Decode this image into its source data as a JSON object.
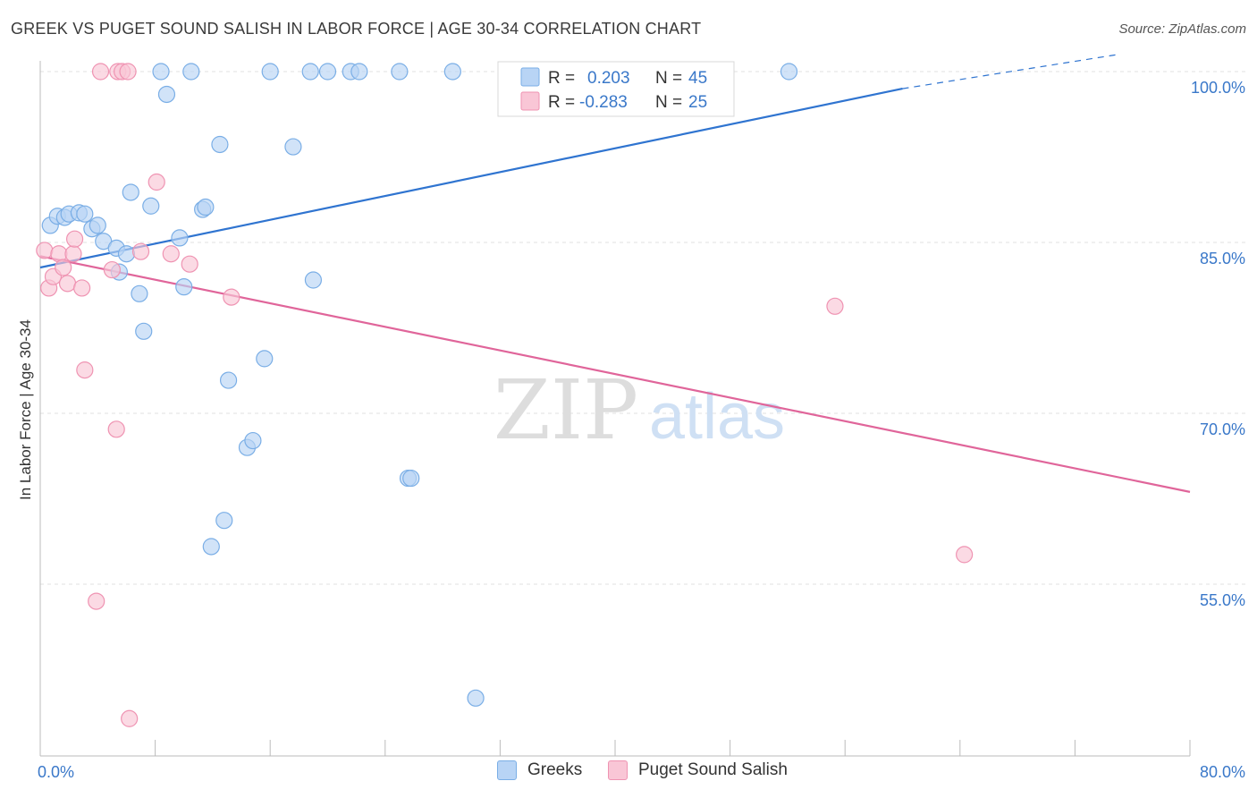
{
  "title": "GREEK VS PUGET SOUND SALISH IN LABOR FORCE | AGE 30-34 CORRELATION CHART",
  "source": "Source: ZipAtlas.com",
  "watermark": {
    "zip": "ZIP",
    "atlas": "atlas"
  },
  "legend_stats": [
    {
      "r_label": "R =",
      "r_value": "0.203",
      "n_label": "N =",
      "n_value": "45"
    },
    {
      "r_label": "R =",
      "r_value": "-0.283",
      "n_label": "N =",
      "n_value": "25"
    }
  ],
  "colors": {
    "greeks_fill": "#b8d4f5",
    "greeks_stroke": "#7aaee6",
    "greeks_line": "#2f74d0",
    "salish_fill": "#f9c6d6",
    "salish_stroke": "#ef93b2",
    "salish_line": "#e0659a",
    "value_text": "#3a78c9",
    "grid": "#e2e2e2"
  },
  "chart_data": {
    "type": "scatter",
    "title": "GREEK VS PUGET SOUND SALISH IN LABOR FORCE | AGE 30-34 CORRELATION CHART",
    "xlabel": "",
    "ylabel": "In Labor Force | Age 30-34",
    "xlim": [
      0,
      80
    ],
    "ylim": [
      42,
      100
    ],
    "x_tick_labels": [
      "0.0%",
      "80.0%"
    ],
    "y_ticks": [
      100,
      85,
      70,
      55
    ],
    "y_tick_labels": [
      "100.0%",
      "85.0%",
      "70.0%",
      "55.0%"
    ],
    "grid": "horizontal dashed",
    "legend_placement": "top-center and bottom",
    "series": [
      {
        "name": "Greeks",
        "r": 0.203,
        "n": 45,
        "trend": {
          "x": [
            0,
            60
          ],
          "y": [
            82.8,
            98.5
          ],
          "dashed_extension_to": [
            75,
            101.5
          ]
        },
        "points": [
          [
            0.7,
            86.5
          ],
          [
            1.2,
            87.3
          ],
          [
            1.7,
            87.2
          ],
          [
            2.0,
            87.5
          ],
          [
            2.7,
            87.6
          ],
          [
            3.1,
            87.5
          ],
          [
            3.6,
            86.2
          ],
          [
            4.0,
            86.5
          ],
          [
            4.4,
            85.1
          ],
          [
            5.3,
            84.5
          ],
          [
            5.5,
            82.4
          ],
          [
            6.0,
            84.0
          ],
          [
            6.3,
            89.4
          ],
          [
            6.9,
            80.5
          ],
          [
            7.2,
            77.2
          ],
          [
            7.7,
            88.2
          ],
          [
            8.4,
            100.0
          ],
          [
            8.8,
            98.0
          ],
          [
            9.7,
            85.4
          ],
          [
            10.0,
            81.1
          ],
          [
            10.5,
            100.0
          ],
          [
            11.3,
            87.9
          ],
          [
            11.5,
            88.1
          ],
          [
            11.9,
            58.3
          ],
          [
            12.5,
            93.6
          ],
          [
            12.8,
            60.6
          ],
          [
            13.1,
            72.9
          ],
          [
            14.4,
            67.0
          ],
          [
            14.8,
            67.6
          ],
          [
            15.6,
            74.8
          ],
          [
            16.0,
            100.0
          ],
          [
            17.6,
            93.4
          ],
          [
            18.8,
            100.0
          ],
          [
            19.0,
            81.7
          ],
          [
            20.0,
            100.0
          ],
          [
            21.6,
            100.0
          ],
          [
            22.2,
            100.0
          ],
          [
            25.0,
            100.0
          ],
          [
            25.6,
            64.3
          ],
          [
            25.8,
            64.3
          ],
          [
            28.7,
            100.0
          ],
          [
            30.3,
            45.0
          ],
          [
            34.2,
            100.0
          ],
          [
            43.3,
            100.0
          ],
          [
            52.1,
            100.0
          ]
        ]
      },
      {
        "name": "Puget Sound Salish",
        "r": -0.283,
        "n": 25,
        "trend": {
          "x": [
            0,
            80
          ],
          "y": [
            83.8,
            63.1
          ]
        },
        "points": [
          [
            0.3,
            84.3
          ],
          [
            0.6,
            81.0
          ],
          [
            0.9,
            82.0
          ],
          [
            1.3,
            84.0
          ],
          [
            1.6,
            82.8
          ],
          [
            1.9,
            81.4
          ],
          [
            2.3,
            84.0
          ],
          [
            2.4,
            85.3
          ],
          [
            2.9,
            81.0
          ],
          [
            3.1,
            73.8
          ],
          [
            3.9,
            53.5
          ],
          [
            4.2,
            100.0
          ],
          [
            5.0,
            82.6
          ],
          [
            5.3,
            68.6
          ],
          [
            5.4,
            100.0
          ],
          [
            5.7,
            100.0
          ],
          [
            6.1,
            100.0
          ],
          [
            6.2,
            43.2
          ],
          [
            7.0,
            84.2
          ],
          [
            8.1,
            90.3
          ],
          [
            9.1,
            84.0
          ],
          [
            10.4,
            83.1
          ],
          [
            13.3,
            80.2
          ],
          [
            55.3,
            79.4
          ],
          [
            64.3,
            57.6
          ]
        ]
      }
    ]
  }
}
